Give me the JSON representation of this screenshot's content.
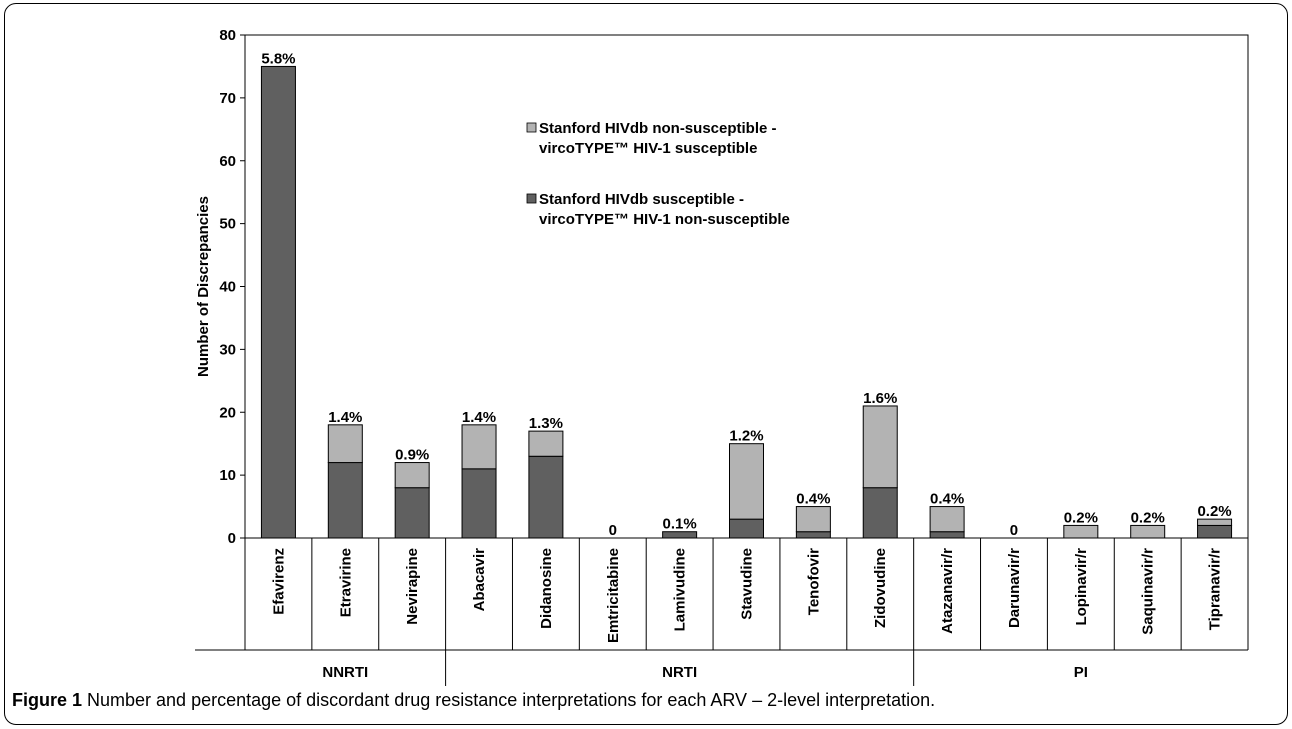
{
  "chart_data": {
    "type": "bar",
    "stacked": true,
    "ylabel": "Number of Discrepancies",
    "ylim": [
      0,
      80
    ],
    "yticks": [
      0,
      10,
      20,
      30,
      40,
      50,
      60,
      70,
      80
    ],
    "categories": [
      "Efavirenz",
      "Etravirine",
      "Nevirapine",
      "Abacavir",
      "Didanosine",
      "Emtricitabine",
      "Lamivudine",
      "Stavudine",
      "Tenofovir",
      "Zidovudine",
      "Atazanavir/r",
      "Darunavir/r",
      "Lopinavir/r",
      "Saquinavir/r",
      "Tipranavir/r"
    ],
    "groups": [
      {
        "name": "NNRTI",
        "count": 3
      },
      {
        "name": "NRTI",
        "count": 7
      },
      {
        "name": "PI",
        "count": 5
      }
    ],
    "series": [
      {
        "name": "Stanford HIVdb susceptible - virco TYPE™ HIV-1 non-susceptible",
        "legend_lines": [
          "Stanford HIVdb susceptible -",
          "vircoTYPE™ HIV-1  non-susceptible"
        ],
        "color": "#606060",
        "values": [
          75,
          12,
          8,
          11,
          13,
          0,
          1,
          3,
          1,
          8,
          1,
          0,
          0,
          0,
          2
        ]
      },
      {
        "name": "Stanford HIVdb non-susceptible - virco TYPE™ HIV-1 susceptible",
        "legend_lines": [
          "Stanford HIVdb non-susceptible -",
          "vircoTYPE™ HIV-1  susceptible"
        ],
        "color": "#b3b3b3",
        "values": [
          0,
          6,
          4,
          7,
          4,
          0,
          0,
          12,
          4,
          13,
          4,
          0,
          2,
          2,
          1
        ]
      }
    ],
    "data_labels": [
      "5.8%",
      "1.4%",
      "0.9%",
      "1.4%",
      "1.3%",
      "0",
      "0.1%",
      "1.2%",
      "0.4%",
      "1.6%",
      "0.4%",
      "0",
      "0.2%",
      "0.2%",
      "0.2%"
    ]
  },
  "caption": {
    "label": "Figure 1",
    "text": " Number and percentage of discordant drug resistance interpretations for each ARV – 2-level interpretation."
  }
}
